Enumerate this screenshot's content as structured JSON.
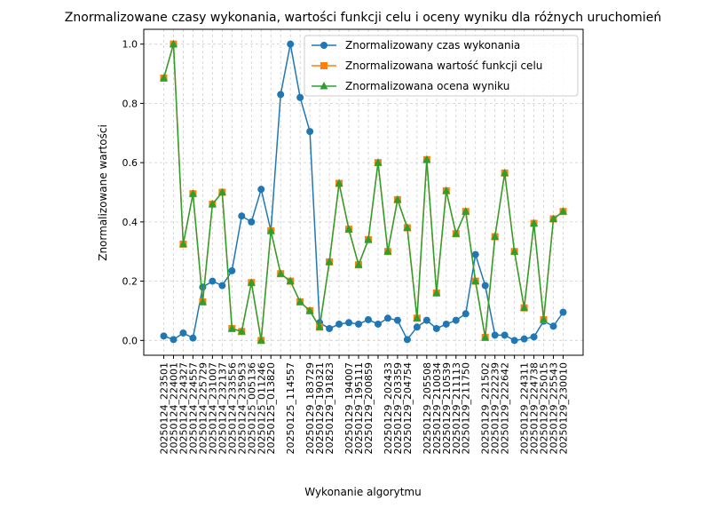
{
  "chart_data": {
    "type": "line",
    "title": "Znormalizowane czasy wykonania, wartości funkcji celu i oceny wyniku dla różnych uruchomień",
    "xlabel": "Wykonanie algorytmu",
    "ylabel": "Znormalizowane wartości",
    "categories": [
      "20250124_223501",
      "20250124_224001",
      "20250124_224327",
      "20250124_224557",
      "20250124_225729",
      "20250124_231007",
      "20250124_232137",
      "20250124_233556",
      "20250124_235953",
      "20250125_005136",
      "20250125_011246",
      "20250125_013820",
      null,
      "20250125_114557",
      null,
      "20250129_183729",
      "20250129_190321",
      "20250129_191823",
      null,
      "20250129_194007",
      "20250129_195111",
      "20250129_200859",
      null,
      "20250129_202433",
      "20250129_203359",
      "20250129_204754",
      null,
      "20250129_205508",
      "20250129_210034",
      "20250129_210539",
      "20250129_211113",
      "20250129_211750",
      null,
      "20250129_221502",
      "20250129_222239",
      "20250129_222642",
      null,
      "20250129_224311",
      "20250129_224738",
      "20250129_225015",
      "20250129_225543",
      "20250129_230010"
    ],
    "series": [
      {
        "name": "Znormalizowany czas wykonania",
        "color": "#1f77b4",
        "marker": "circle",
        "values": [
          0.015,
          0.003,
          0.025,
          0.008,
          0.18,
          0.2,
          0.185,
          0.235,
          0.42,
          0.4,
          0.51,
          0.37,
          0.83,
          1.0,
          0.82,
          0.705,
          0.06,
          0.04,
          0.055,
          0.06,
          0.055,
          0.07,
          0.055,
          0.075,
          0.068,
          0.003,
          0.045,
          0.068,
          0.04,
          0.055,
          0.068,
          0.09,
          0.29,
          0.185,
          0.018,
          0.018,
          0.0,
          0.005,
          0.012,
          0.065,
          0.048,
          0.095
        ]
      },
      {
        "name": "Znormalizowana wartość funkcji celu",
        "color": "#ff7f0e",
        "marker": "square",
        "values": [
          0.885,
          1.0,
          0.325,
          0.495,
          0.13,
          0.46,
          0.5,
          0.04,
          0.03,
          0.195,
          0.0,
          0.37,
          0.225,
          0.2,
          0.13,
          0.1,
          0.045,
          0.265,
          0.53,
          0.375,
          0.255,
          0.34,
          0.6,
          0.3,
          0.475,
          0.38,
          0.075,
          0.61,
          0.16,
          0.505,
          0.36,
          0.435,
          0.2,
          0.01,
          0.35,
          0.565,
          0.3,
          0.11,
          0.395,
          0.07,
          0.41,
          0.435
        ]
      },
      {
        "name": "Znormalizowana ocena wyniku",
        "color": "#2ca02c",
        "marker": "triangle",
        "values": [
          0.885,
          1.0,
          0.325,
          0.495,
          0.13,
          0.46,
          0.5,
          0.04,
          0.03,
          0.195,
          0.0,
          0.37,
          0.225,
          0.2,
          0.13,
          0.1,
          0.045,
          0.265,
          0.53,
          0.375,
          0.255,
          0.34,
          0.6,
          0.3,
          0.475,
          0.38,
          0.075,
          0.61,
          0.16,
          0.505,
          0.36,
          0.435,
          0.2,
          0.01,
          0.35,
          0.565,
          0.3,
          0.11,
          0.395,
          0.07,
          0.41,
          0.435
        ]
      }
    ],
    "ylim": [
      -0.05,
      1.05
    ],
    "yticks": [
      {
        "value": 0,
        "label": "0.0"
      },
      {
        "value": 0.2,
        "label": "0.2"
      },
      {
        "value": 0.4,
        "label": "0.4"
      },
      {
        "value": 0.6,
        "label": "0.6"
      },
      {
        "value": 0.8,
        "label": "0.8"
      },
      {
        "value": 1,
        "label": "1.0"
      }
    ],
    "grid": true,
    "legend": "upper right"
  }
}
